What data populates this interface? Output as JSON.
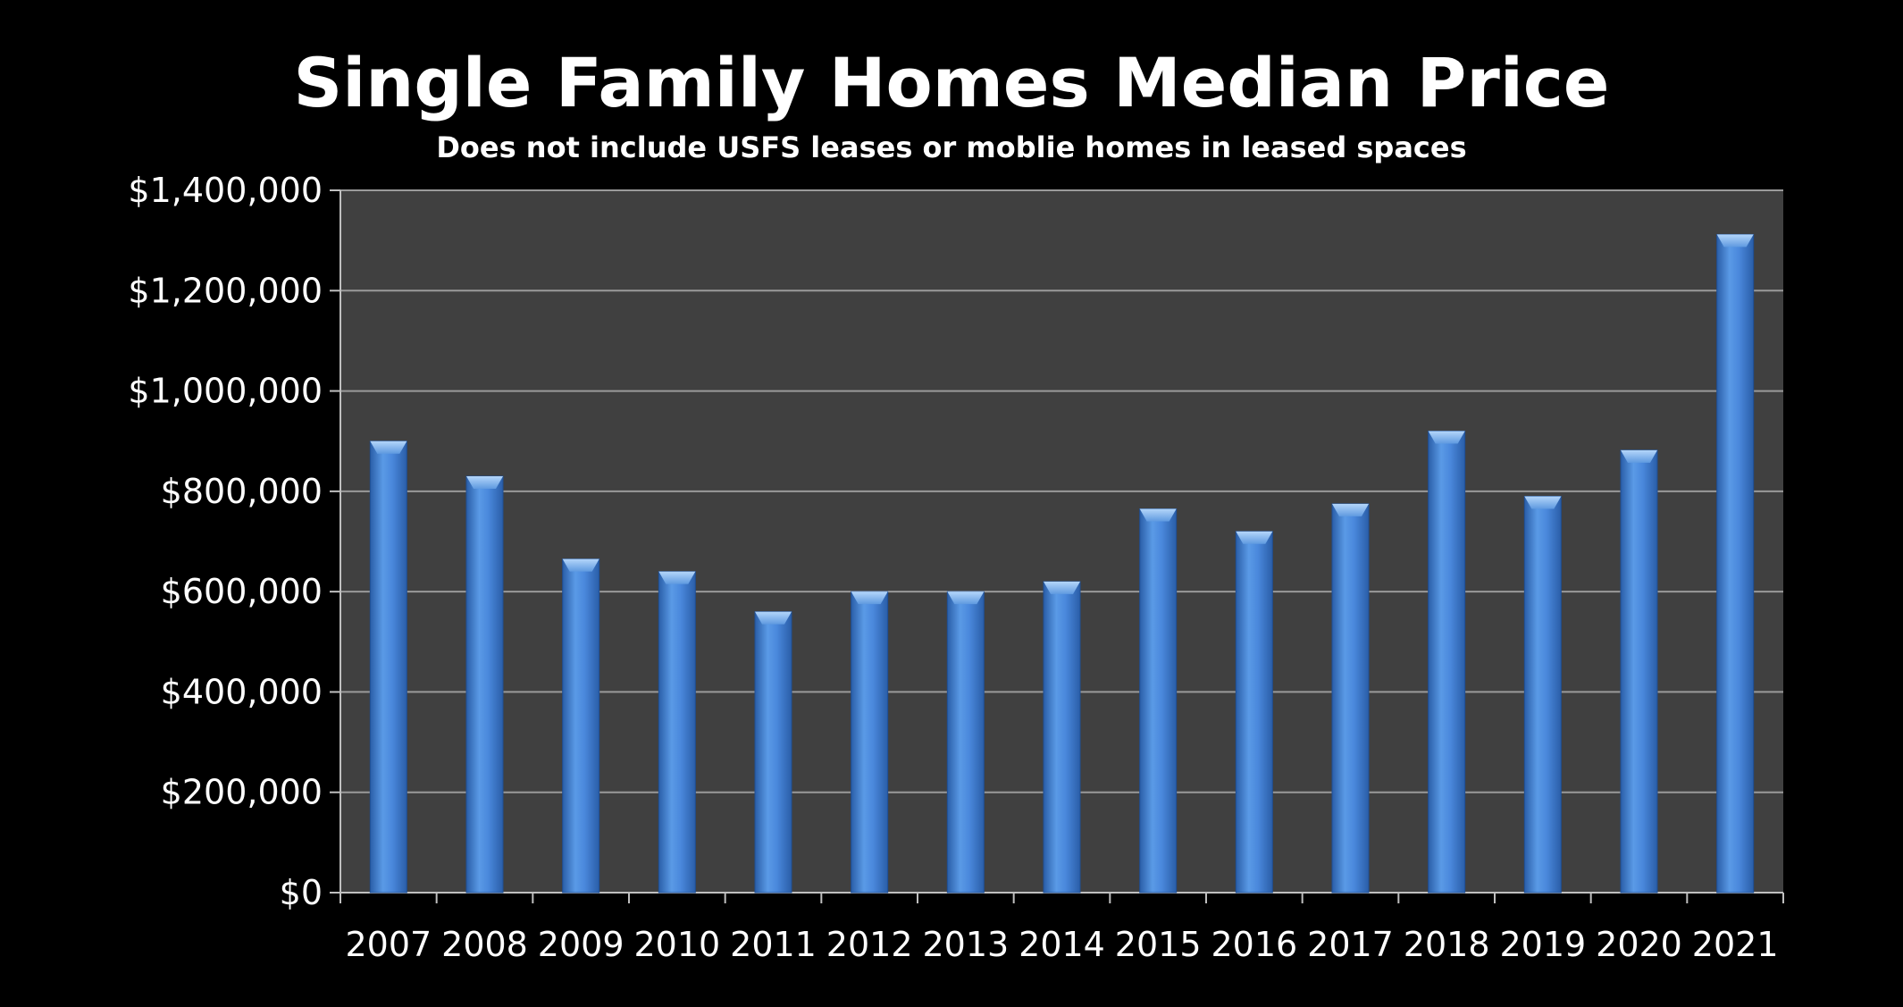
{
  "chart_data": {
    "type": "bar",
    "title": "Single Family Homes Median Price",
    "subtitle": "Does not include USFS leases or moblie homes in leased spaces",
    "xlabel": "",
    "ylabel": "",
    "categories": [
      "2007",
      "2008",
      "2009",
      "2010",
      "2011",
      "2012",
      "2013",
      "2014",
      "2015",
      "2016",
      "2017",
      "2018",
      "2019",
      "2020",
      "2021"
    ],
    "values": [
      900000,
      830000,
      665000,
      640000,
      560000,
      600000,
      600000,
      620000,
      765000,
      720000,
      775000,
      920000,
      790000,
      882000,
      1312000
    ],
    "ylim": [
      0,
      1400000
    ],
    "yticks": [
      0,
      200000,
      400000,
      600000,
      800000,
      1000000,
      1200000,
      1400000
    ],
    "ytick_labels": [
      "$0",
      "$200,000",
      "$400,000",
      "$600,000",
      "$800,000",
      "$1,000,000",
      "$1,200,000",
      "$1,400,000"
    ],
    "grid": true,
    "legend": "none",
    "colors": {
      "background": "#000000",
      "plot_area": "#404040",
      "bar": "#3f7fd4",
      "bar_light": "#7fb2ee",
      "bar_dark": "#2a5ea8",
      "gridline": "#9a9a9a",
      "text": "#ffffff"
    }
  }
}
